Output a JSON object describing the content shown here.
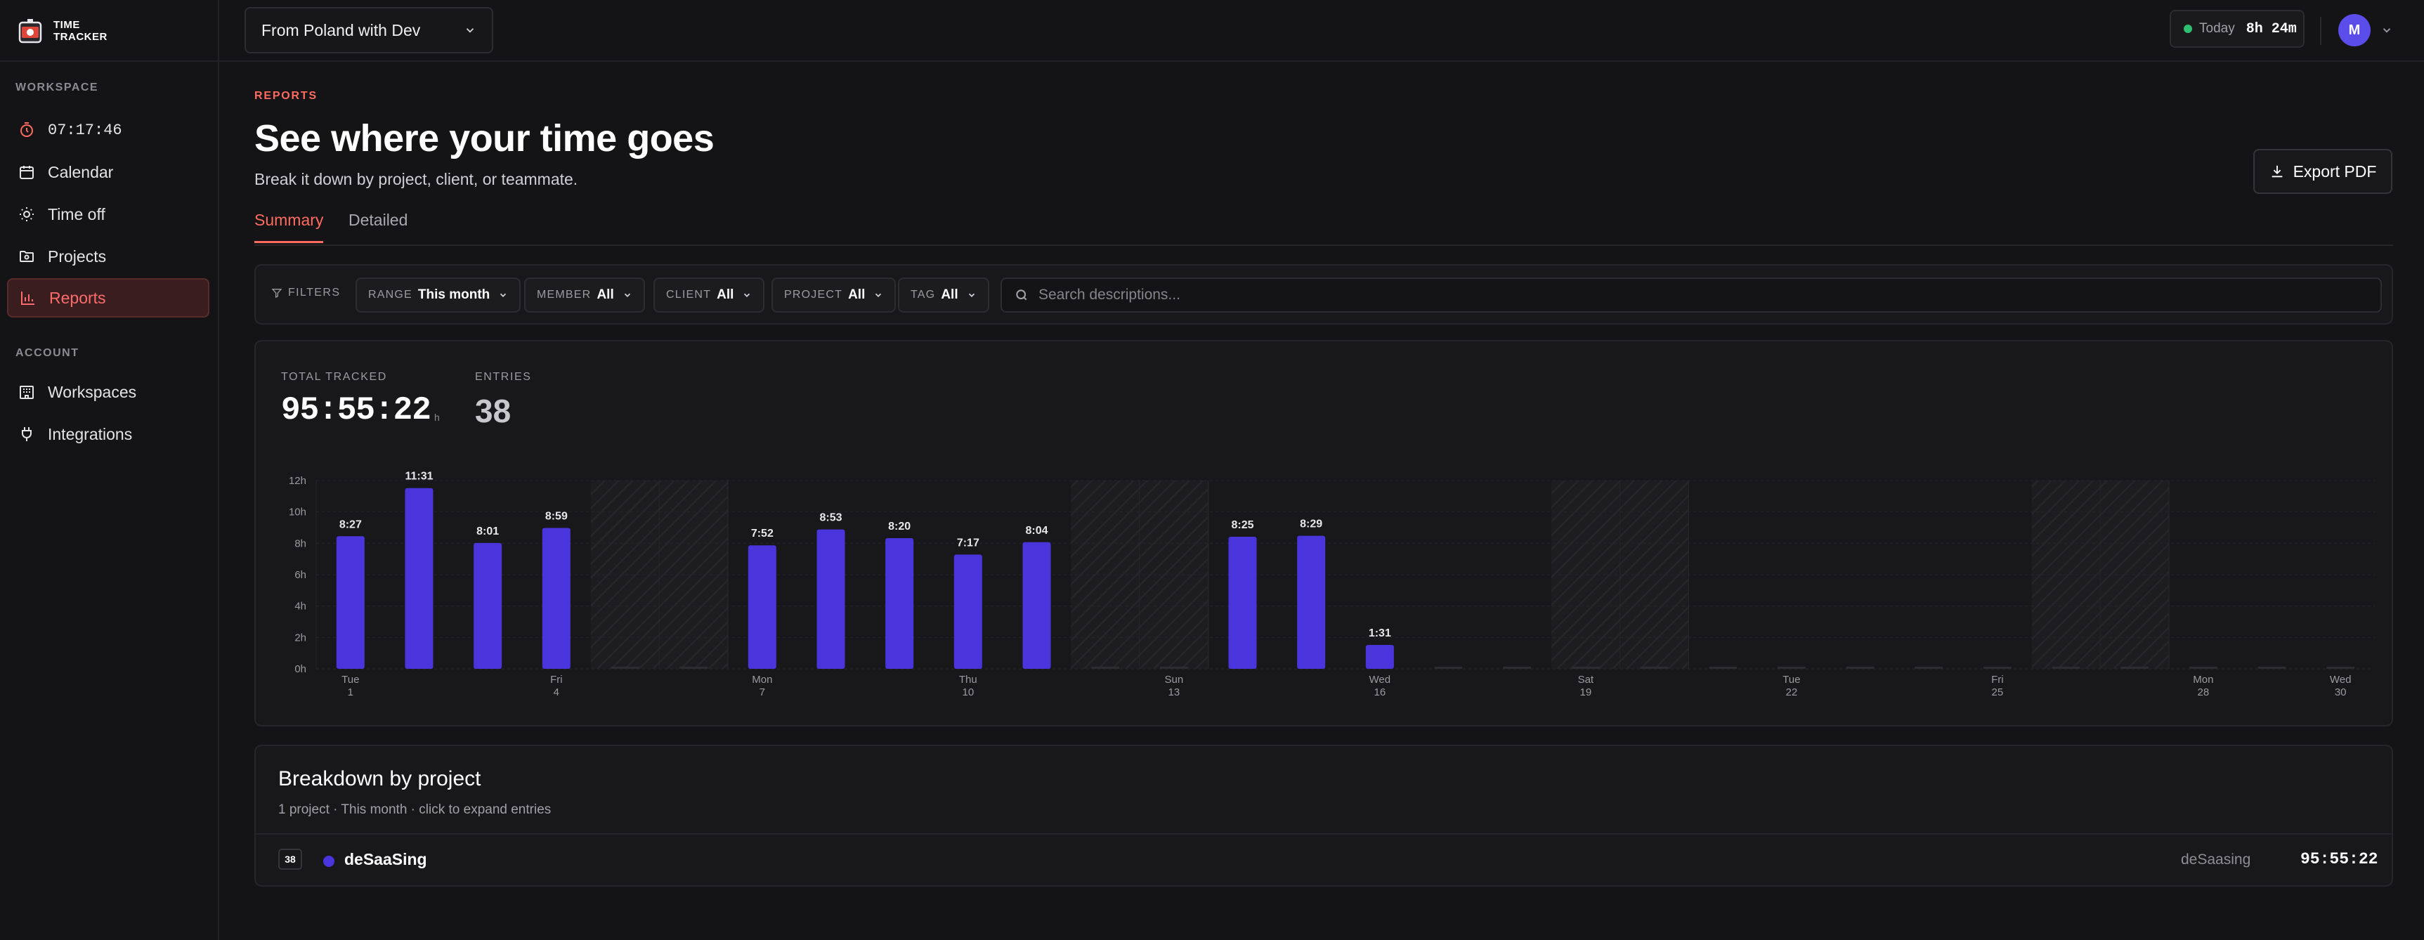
{
  "app": {
    "logo_line1": "TIME",
    "logo_line2": "TRACKER"
  },
  "sidebar": {
    "workspace_label": "WORKSPACE",
    "account_label": "ACCOUNT",
    "items": [
      {
        "label": "07:17:46",
        "icon": "timer-icon"
      },
      {
        "label": "Calendar",
        "icon": "calendar-icon"
      },
      {
        "label": "Time off",
        "icon": "sun-icon"
      },
      {
        "label": "Projects",
        "icon": "folder-icon"
      },
      {
        "label": "Reports",
        "icon": "bar-chart-icon",
        "active": true
      }
    ],
    "account_items": [
      {
        "label": "Workspaces",
        "icon": "building-icon"
      },
      {
        "label": "Integrations",
        "icon": "plug-icon"
      }
    ]
  },
  "topbar": {
    "workspace": "From Poland with Dev",
    "today_label": "Today",
    "today_value": "8h 24m",
    "avatar_initial": "M"
  },
  "page": {
    "eyebrow": "REPORTS",
    "title": "See where your time goes",
    "subtitle": "Break it down by project, client, or teammate.",
    "export_label": "Export PDF",
    "tabs": [
      "Summary",
      "Detailed"
    ]
  },
  "filters": {
    "label": "FILTERS",
    "range": {
      "key": "RANGE",
      "value": "This month"
    },
    "member": {
      "key": "MEMBER",
      "value": "All"
    },
    "client": {
      "key": "CLIENT",
      "value": "All"
    },
    "project": {
      "key": "PROJECT",
      "value": "All"
    },
    "tag": {
      "key": "TAG",
      "value": "All"
    },
    "search_placeholder": "Search descriptions..."
  },
  "stats": {
    "total_label": "TOTAL TRACKED",
    "total_value": "95:55:22",
    "total_unit": "h",
    "entries_label": "ENTRIES",
    "entries_value": "38"
  },
  "chart_data": {
    "type": "bar",
    "y_unit": "hours",
    "ylim": [
      0,
      12
    ],
    "y_ticks": [
      "0h",
      "2h",
      "4h",
      "6h",
      "8h",
      "10h",
      "12h"
    ],
    "days": [
      1,
      2,
      3,
      4,
      5,
      6,
      7,
      8,
      9,
      10,
      11,
      12,
      13,
      14,
      15,
      16,
      17,
      18,
      19,
      20,
      21,
      22,
      23,
      24,
      25,
      26,
      27,
      28,
      29,
      30
    ],
    "values": [
      8.45,
      11.52,
      8.02,
      8.98,
      0,
      0,
      7.87,
      8.88,
      8.33,
      7.28,
      8.07,
      0,
      0,
      8.42,
      8.48,
      1.52,
      0,
      0,
      0,
      0,
      0,
      0,
      0,
      0,
      0,
      0,
      0,
      0,
      0,
      0
    ],
    "value_labels": [
      "8:27",
      "11:31",
      "8:01",
      "8:59",
      "",
      "",
      "7:52",
      "8:53",
      "8:20",
      "7:17",
      "8:04",
      "",
      "",
      "8:25",
      "8:29",
      "1:31",
      "",
      "",
      "",
      "",
      "",
      "",
      "",
      "",
      "",
      "",
      "",
      "",
      "",
      ""
    ],
    "weekend_days": [
      5,
      6,
      12,
      13,
      19,
      20,
      26,
      27
    ],
    "x_tick_labels": [
      {
        "day": 1,
        "weekday": "Tue",
        "date": "1"
      },
      {
        "day": 4,
        "weekday": "Fri",
        "date": "4"
      },
      {
        "day": 7,
        "weekday": "Mon",
        "date": "7"
      },
      {
        "day": 10,
        "weekday": "Thu",
        "date": "10"
      },
      {
        "day": 13,
        "weekday": "Sun",
        "date": "13"
      },
      {
        "day": 16,
        "weekday": "Wed",
        "date": "16"
      },
      {
        "day": 19,
        "weekday": "Sat",
        "date": "19"
      },
      {
        "day": 22,
        "weekday": "Tue",
        "date": "22"
      },
      {
        "day": 25,
        "weekday": "Fri",
        "date": "25"
      },
      {
        "day": 28,
        "weekday": "Mon",
        "date": "28"
      },
      {
        "day": 30,
        "weekday": "Wed",
        "date": "30"
      }
    ],
    "bar_color": "#4a35dd"
  },
  "breakdown": {
    "title": "Breakdown by project",
    "subtitle": "1 project · This month · click to expand entries",
    "rows": [
      {
        "count": "38",
        "name": "deSaaSing",
        "client": "deSaasing",
        "duration": "95:55:22",
        "color": "#4a35dd"
      }
    ]
  },
  "colors": {
    "accent": "#ff6b5e",
    "bar": "#4a35dd",
    "avatar": "#5b4dea",
    "status_dot": "#2fbf71"
  }
}
